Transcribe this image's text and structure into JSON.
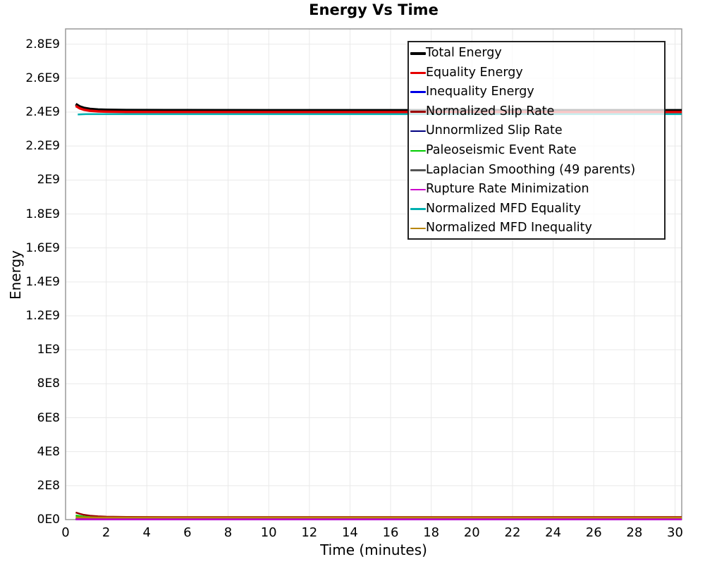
{
  "title": "Energy Vs Time",
  "chart_data": {
    "type": "line",
    "title": "Energy Vs Time",
    "xlabel": "Time (minutes)",
    "ylabel": "Energy",
    "xlim": [
      0,
      30.33
    ],
    "ylim": [
      0,
      2890000000.0
    ],
    "grid": true,
    "grid_color": "#e9e9e9",
    "border_color": "#9a9a9a",
    "legend_position": "top-right",
    "x_ticks": {
      "values": [
        0,
        2,
        4,
        6,
        8,
        10,
        12,
        14,
        16,
        18,
        20,
        22,
        24,
        26,
        28,
        30
      ],
      "labels": [
        "0",
        "2",
        "4",
        "6",
        "8",
        "10",
        "12",
        "14",
        "16",
        "18",
        "20",
        "22",
        "24",
        "26",
        "28",
        "30"
      ]
    },
    "y_ticks": {
      "values": [
        0,
        200000000.0,
        400000000.0,
        600000000.0,
        800000000.0,
        1000000000.0,
        1200000000.0,
        1400000000.0,
        1600000000.0,
        1800000000.0,
        2000000000.0,
        2200000000.0,
        2400000000.0,
        2600000000.0,
        2800000000.0
      ],
      "labels": [
        "0E0",
        "2E8",
        "4E8",
        "6E8",
        "8E8",
        "1E9",
        "1.2E9",
        "1.4E9",
        "1.6E9",
        "1.8E9",
        "2E9",
        "2.2E9",
        "2.4E9",
        "2.6E9",
        "2.8E9"
      ]
    },
    "series": [
      {
        "name": "Total Energy",
        "color": "#000000",
        "width": 4,
        "points": [
          [
            0.5,
            2447000000.0
          ],
          [
            0.7,
            2432000000.0
          ],
          [
            0.9,
            2424000000.0
          ],
          [
            1.2,
            2418000000.0
          ],
          [
            1.6,
            2414000000.0
          ],
          [
            2,
            2412500000.0
          ],
          [
            3,
            2411000000.0
          ],
          [
            5,
            2410500000.0
          ],
          [
            10,
            2410000000.0
          ],
          [
            30.33,
            2410000000.0
          ]
        ]
      },
      {
        "name": "Equality Energy",
        "color": "#e60000",
        "width": 3.5,
        "points": [
          [
            0.5,
            2436000000.0
          ],
          [
            0.7,
            2422000000.0
          ],
          [
            0.9,
            2414000000.0
          ],
          [
            1.2,
            2408000000.0
          ],
          [
            1.6,
            2404000000.0
          ],
          [
            2,
            2402500000.0
          ],
          [
            3,
            2401000000.0
          ],
          [
            5,
            2400500000.0
          ],
          [
            10,
            2400000000.0
          ],
          [
            30.33,
            2400000000.0
          ]
        ]
      },
      {
        "name": "Inequality Energy",
        "color": "#0000e6",
        "width": 3,
        "points": [
          [
            0.5,
            2000000.0
          ],
          [
            30.33,
            2000000.0
          ]
        ]
      },
      {
        "name": "Normalized Slip Rate",
        "color": "#990000",
        "width": 2.5,
        "points": [
          [
            0.5,
            42000000.0
          ],
          [
            0.7,
            34000000.0
          ],
          [
            0.9,
            28000000.0
          ],
          [
            1.2,
            23000000.0
          ],
          [
            1.6,
            19000000.0
          ],
          [
            2,
            17000000.0
          ],
          [
            3,
            15500000.0
          ],
          [
            5,
            15000000.0
          ],
          [
            30.33,
            15000000.0
          ]
        ]
      },
      {
        "name": "Unnormlized Slip Rate",
        "color": "#000080",
        "width": 2.5,
        "points": [
          [
            0.5,
            3000000.0
          ],
          [
            30.33,
            3000000.0
          ]
        ]
      },
      {
        "name": "Paleoseismic Event Rate",
        "color": "#00cc00",
        "width": 2.5,
        "points": [
          [
            0.5,
            24000000.0
          ],
          [
            0.9,
            17000000.0
          ],
          [
            1.5,
            12000000.0
          ],
          [
            2,
            10000000.0
          ],
          [
            3,
            8500000.0
          ],
          [
            5,
            8000000.0
          ],
          [
            30.33,
            8000000.0
          ]
        ]
      },
      {
        "name": "Laplacian Smoothing (49 parents)",
        "color": "#555555",
        "width": 2.5,
        "points": [
          [
            0.5,
            5000000.0
          ],
          [
            30.33,
            5000000.0
          ]
        ]
      },
      {
        "name": "Rupture Rate Minimization",
        "color": "#cc00cc",
        "width": 2.5,
        "points": [
          [
            0.5,
            1500000.0
          ],
          [
            30.33,
            1500000.0
          ]
        ]
      },
      {
        "name": "Normalized MFD Equality",
        "color": "#00b0b0",
        "width": 2.5,
        "points": [
          [
            0.6,
            2386000000.0
          ],
          [
            1.0,
            2388000000.0
          ],
          [
            30.33,
            2388000000.0
          ]
        ]
      },
      {
        "name": "Normalized MFD Inequality",
        "color": "#b8860b",
        "width": 2.5,
        "points": [
          [
            0.5,
            13500000.0
          ],
          [
            2,
            12500000.0
          ],
          [
            30.33,
            12000000.0
          ]
        ]
      }
    ]
  }
}
